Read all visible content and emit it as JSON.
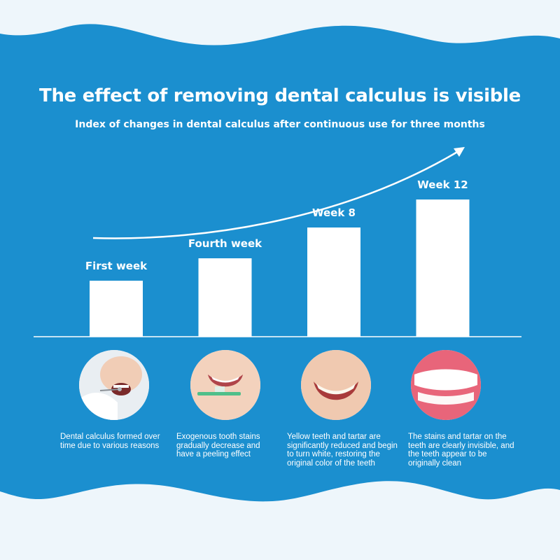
{
  "header": {
    "title": "The effect of removing dental calculus is visible",
    "subtitle": "Index of changes in dental calculus after continuous use for three months"
  },
  "chart_data": {
    "type": "bar",
    "categories": [
      "First week",
      "Fourth week",
      "Week 8",
      "Week 12"
    ],
    "values": [
      1,
      1.4,
      1.95,
      2.45
    ],
    "ylim": [
      0,
      3
    ],
    "grid": false,
    "bar_color": "#ffffff",
    "trend_arrow": true
  },
  "captions": [
    "Dental calculus formed over time due to various reasons",
    "Exogenous tooth stains gradually decrease and have a peeling effect",
    "Yellow teeth and tartar are significantly reduced and begin to turn white, restoring the original color of the teeth",
    "The stains and tartar on the teeth are clearly invisible, and the teeth appear to be originally clean"
  ],
  "colors": {
    "background": "#1b8fcf",
    "wave": "#eef6fb"
  }
}
